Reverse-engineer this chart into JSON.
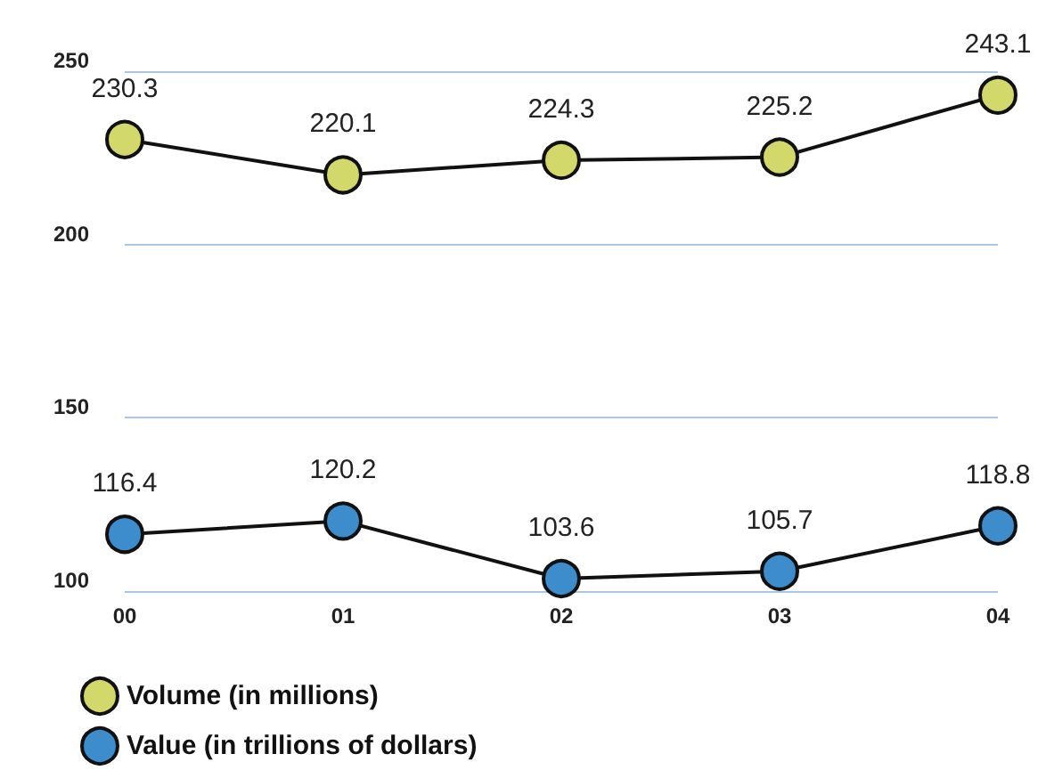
{
  "chart_data": {
    "type": "line",
    "categories": [
      "00",
      "01",
      "02",
      "03",
      "04"
    ],
    "series": [
      {
        "name": "Volume (in millions)",
        "color": "#d3d86a",
        "values": [
          230.3,
          220.1,
          224.3,
          225.2,
          243.1
        ]
      },
      {
        "name": "Value (in trillions of dollars)",
        "color": "#3d8ccc",
        "values": [
          116.4,
          120.2,
          103.6,
          105.7,
          118.8
        ]
      }
    ],
    "ylim": [
      100,
      250
    ],
    "yticks": [
      100,
      150,
      200,
      250
    ],
    "grid": "y",
    "legend": "bottom left",
    "marker": "circle",
    "line_style": "solid",
    "data_labels": true
  }
}
